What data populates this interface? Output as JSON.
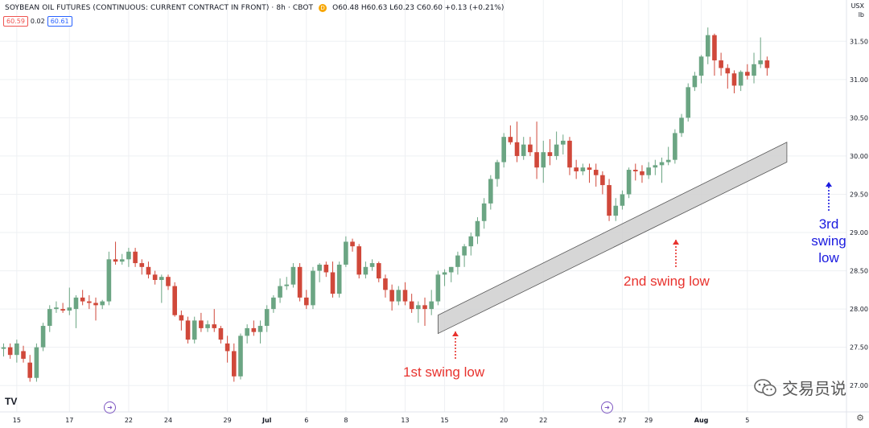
{
  "header": {
    "title": "SOYBEAN OIL FUTURES (CONTINUOUS: CURRENT CONTRACT IN FRONT) · 8h · CBOT",
    "badge": "D",
    "ohlc": "O60.48 H60.63 L60.23 C60.60 +0.13 (+0.21%)",
    "bid": "60.59",
    "spread": "0.02",
    "ask": "60.61"
  },
  "axis_units": {
    "currency": "USX",
    "unit": "lb"
  },
  "logo": "TV",
  "watermark": "交易员说",
  "colors": {
    "up": "#6ba583",
    "down": "#d0483a",
    "channel_fill": "#cfcfcf",
    "annotation_red": "#e8322d",
    "annotation_blue": "#1a1adf"
  },
  "annotations": {
    "first": "1st swing low",
    "second": "2nd swing low",
    "third_lines": [
      "3rd",
      "swing",
      "low"
    ]
  },
  "chart_data": {
    "type": "candlestick",
    "title": "SOYBEAN OIL FUTURES (CONTINUOUS: CURRENT CONTRACT IN FRONT) · 8h · CBOT",
    "ylim": [
      26.75,
      31.85
    ],
    "y_ticks": [
      27.0,
      27.5,
      28.0,
      28.5,
      29.0,
      29.5,
      30.0,
      30.5,
      31.0,
      31.5
    ],
    "y_tick_labels": [
      "27.00",
      "27.50",
      "28.00",
      "28.50",
      "29.00",
      "29.50",
      "30.00",
      "30.50",
      "31.00",
      "31.50"
    ],
    "x_labels": [
      "15",
      "17",
      "22",
      "24",
      "29",
      "Jul",
      "6",
      "8",
      "13",
      "15",
      "20",
      "22",
      "27",
      "29",
      "Aug",
      "5"
    ],
    "x_label_bars": [
      2,
      10,
      19,
      25,
      34,
      40,
      46,
      52,
      61,
      67,
      76,
      82,
      94,
      98,
      106,
      113
    ],
    "grid": true,
    "candles": [
      [
        27.48,
        27.55,
        27.38,
        27.5
      ],
      [
        27.5,
        27.55,
        27.35,
        27.4
      ],
      [
        27.4,
        27.6,
        27.3,
        27.55
      ],
      [
        27.45,
        27.52,
        27.3,
        27.35
      ],
      [
        27.3,
        27.4,
        27.05,
        27.1
      ],
      [
        27.1,
        27.55,
        27.05,
        27.5
      ],
      [
        27.5,
        27.82,
        27.45,
        27.78
      ],
      [
        27.78,
        28.05,
        27.7,
        28.0
      ],
      [
        28.0,
        28.1,
        27.95,
        28.02
      ],
      [
        28.0,
        28.08,
        27.95,
        27.98
      ],
      [
        27.98,
        28.28,
        27.92,
        28.02
      ],
      [
        28.0,
        28.18,
        27.75,
        28.15
      ],
      [
        28.15,
        28.25,
        28.05,
        28.1
      ],
      [
        28.1,
        28.18,
        28.0,
        28.08
      ],
      [
        28.08,
        28.15,
        27.85,
        28.05
      ],
      [
        28.05,
        28.12,
        28.0,
        28.1
      ],
      [
        28.1,
        28.75,
        28.05,
        28.65
      ],
      [
        28.65,
        28.88,
        28.58,
        28.62
      ],
      [
        28.62,
        28.72,
        28.58,
        28.65
      ],
      [
        28.65,
        28.8,
        28.55,
        28.75
      ],
      [
        28.75,
        28.8,
        28.55,
        28.6
      ],
      [
        28.6,
        28.65,
        28.45,
        28.55
      ],
      [
        28.55,
        28.62,
        28.4,
        28.45
      ],
      [
        28.45,
        28.5,
        28.32,
        28.38
      ],
      [
        28.38,
        28.45,
        28.08,
        28.42
      ],
      [
        28.42,
        28.45,
        28.25,
        28.3
      ],
      [
        28.3,
        28.35,
        27.9,
        27.92
      ],
      [
        27.92,
        27.98,
        27.72,
        27.85
      ],
      [
        27.85,
        27.9,
        27.55,
        27.6
      ],
      [
        27.6,
        27.9,
        27.55,
        27.85
      ],
      [
        27.85,
        27.95,
        27.7,
        27.75
      ],
      [
        27.75,
        27.85,
        27.7,
        27.8
      ],
      [
        27.8,
        28.0,
        27.7,
        27.75
      ],
      [
        27.75,
        27.78,
        27.55,
        27.6
      ],
      [
        27.55,
        27.65,
        27.3,
        27.45
      ],
      [
        27.45,
        27.55,
        27.05,
        27.12
      ],
      [
        27.12,
        27.68,
        27.08,
        27.65
      ],
      [
        27.65,
        27.8,
        27.55,
        27.75
      ],
      [
        27.75,
        27.85,
        27.65,
        27.7
      ],
      [
        27.7,
        27.85,
        27.55,
        27.78
      ],
      [
        27.78,
        28.05,
        27.7,
        28.0
      ],
      [
        28.0,
        28.18,
        27.95,
        28.15
      ],
      [
        28.15,
        28.4,
        28.08,
        28.3
      ],
      [
        28.3,
        28.42,
        28.25,
        28.32
      ],
      [
        28.32,
        28.6,
        28.28,
        28.55
      ],
      [
        28.55,
        28.6,
        28.1,
        28.15
      ],
      [
        28.15,
        28.25,
        28.0,
        28.05
      ],
      [
        28.05,
        28.55,
        28.0,
        28.5
      ],
      [
        28.5,
        28.6,
        28.35,
        28.58
      ],
      [
        28.58,
        28.62,
        28.42,
        28.48
      ],
      [
        28.48,
        28.62,
        28.15,
        28.2
      ],
      [
        28.2,
        28.62,
        28.15,
        28.58
      ],
      [
        28.58,
        28.95,
        28.55,
        28.88
      ],
      [
        28.88,
        28.92,
        28.75,
        28.82
      ],
      [
        28.82,
        28.85,
        28.4,
        28.45
      ],
      [
        28.45,
        28.62,
        28.4,
        28.55
      ],
      [
        28.55,
        28.65,
        28.5,
        28.6
      ],
      [
        28.6,
        28.62,
        28.35,
        28.4
      ],
      [
        28.4,
        28.45,
        28.15,
        28.25
      ],
      [
        28.25,
        28.32,
        27.98,
        28.1
      ],
      [
        28.1,
        28.3,
        28.05,
        28.25
      ],
      [
        28.25,
        28.35,
        28.05,
        28.1
      ],
      [
        28.1,
        28.2,
        27.95,
        28.0
      ],
      [
        28.0,
        28.1,
        27.82,
        28.05
      ],
      [
        28.05,
        28.15,
        27.78,
        28.0
      ],
      [
        28.0,
        28.25,
        27.92,
        28.1
      ],
      [
        28.1,
        28.5,
        28.05,
        28.45
      ],
      [
        28.45,
        28.52,
        28.3,
        28.48
      ],
      [
        28.48,
        28.55,
        28.35,
        28.55
      ],
      [
        28.55,
        28.75,
        28.45,
        28.7
      ],
      [
        28.7,
        28.85,
        28.55,
        28.82
      ],
      [
        28.82,
        29.0,
        28.7,
        28.95
      ],
      [
        28.95,
        29.2,
        28.85,
        29.15
      ],
      [
        29.15,
        29.45,
        29.05,
        29.38
      ],
      [
        29.38,
        29.75,
        29.3,
        29.7
      ],
      [
        29.7,
        29.95,
        29.6,
        29.92
      ],
      [
        29.92,
        30.3,
        29.85,
        30.25
      ],
      [
        30.25,
        30.4,
        30.15,
        30.18
      ],
      [
        30.18,
        30.45,
        29.92,
        30.0
      ],
      [
        30.0,
        30.25,
        29.95,
        30.15
      ],
      [
        30.15,
        30.25,
        30.0,
        30.05
      ],
      [
        30.05,
        30.45,
        29.7,
        29.85
      ],
      [
        29.85,
        30.2,
        29.65,
        30.05
      ],
      [
        30.05,
        30.22,
        29.88,
        30.0
      ],
      [
        30.0,
        30.32,
        29.95,
        30.15
      ],
      [
        30.15,
        30.28,
        30.02,
        30.2
      ],
      [
        30.2,
        30.25,
        29.75,
        29.85
      ],
      [
        29.85,
        29.95,
        29.7,
        29.8
      ],
      [
        29.8,
        29.9,
        29.75,
        29.85
      ],
      [
        29.85,
        29.9,
        29.65,
        29.82
      ],
      [
        29.82,
        29.9,
        29.6,
        29.75
      ],
      [
        29.75,
        29.8,
        29.5,
        29.62
      ],
      [
        29.62,
        29.7,
        29.15,
        29.22
      ],
      [
        29.22,
        29.45,
        29.15,
        29.35
      ],
      [
        29.35,
        29.55,
        29.3,
        29.5
      ],
      [
        29.5,
        29.85,
        29.45,
        29.82
      ],
      [
        29.82,
        29.9,
        29.68,
        29.8
      ],
      [
        29.8,
        29.88,
        29.65,
        29.75
      ],
      [
        29.75,
        29.92,
        29.7,
        29.85
      ],
      [
        29.85,
        29.95,
        29.75,
        29.88
      ],
      [
        29.88,
        29.98,
        29.65,
        29.92
      ],
      [
        29.92,
        30.12,
        29.88,
        29.95
      ],
      [
        29.95,
        30.35,
        29.9,
        30.3
      ],
      [
        30.3,
        30.55,
        30.25,
        30.5
      ],
      [
        30.5,
        30.95,
        30.45,
        30.9
      ],
      [
        30.9,
        31.1,
        30.85,
        31.05
      ],
      [
        31.05,
        31.32,
        30.95,
        31.3
      ],
      [
        31.3,
        31.68,
        31.2,
        31.58
      ],
      [
        31.58,
        31.6,
        31.05,
        31.25
      ],
      [
        31.25,
        31.35,
        31.05,
        31.15
      ],
      [
        31.15,
        31.2,
        30.88,
        31.08
      ],
      [
        31.08,
        31.12,
        30.82,
        30.92
      ],
      [
        30.92,
        31.12,
        30.85,
        31.1
      ],
      [
        31.1,
        31.2,
        31.0,
        31.05
      ],
      [
        31.05,
        31.35,
        30.95,
        31.2
      ],
      [
        31.2,
        31.55,
        31.15,
        31.25
      ],
      [
        31.25,
        31.3,
        31.05,
        31.15
      ]
    ],
    "channel": {
      "lower_start": [
        66,
        27.68
      ],
      "lower_end": [
        119,
        29.92
      ],
      "upper_start": [
        66,
        27.92
      ],
      "upper_end": [
        119,
        30.18
      ]
    }
  }
}
